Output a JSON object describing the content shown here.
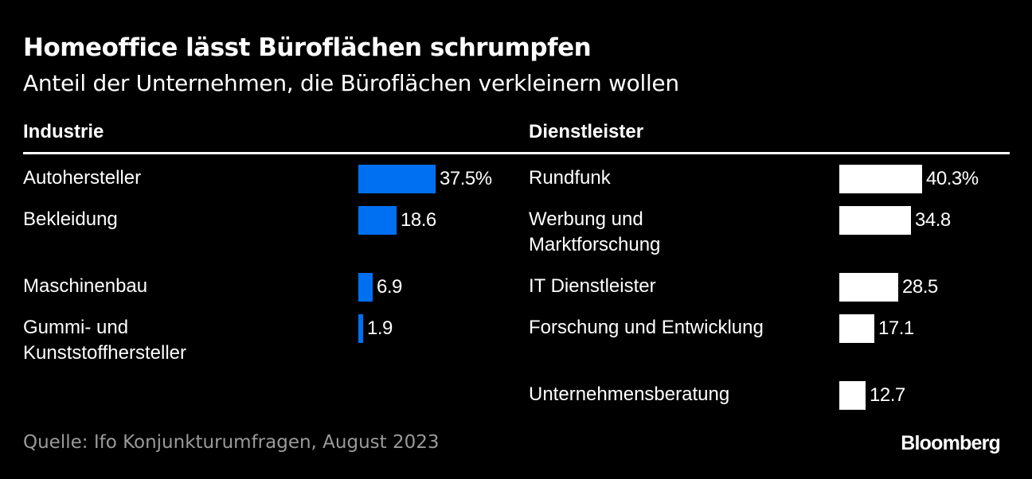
{
  "header": {
    "title": "Homeoffice lässt Büroflächen schrumpfen",
    "subtitle": "Anteil der Unternehmen, die Büroflächen verkleinern wollen"
  },
  "footer": {
    "source": "Quelle: Ifo Konjunkturumfragen, August 2023",
    "brand": "Bloomberg"
  },
  "chart_data": [
    {
      "type": "bar",
      "orientation": "horizontal",
      "group": "Industrie",
      "color": "#0070f3",
      "xlim": [
        0,
        40.3
      ],
      "categories": [
        "Autohersteller",
        "Bekleidung",
        "Maschinenbau",
        "Gummi- und\nKunststoffhersteller"
      ],
      "values": [
        37.5,
        18.6,
        6.9,
        1.9
      ],
      "value_labels": [
        "37.5%",
        "18.6",
        "6.9",
        "1.9"
      ]
    },
    {
      "type": "bar",
      "orientation": "horizontal",
      "group": "Dienstleister",
      "color": "#ffffff",
      "xlim": [
        0,
        40.3
      ],
      "categories": [
        "Rundfunk",
        "Werbung und\nMarktforschung",
        "IT Dienstleister",
        "Forschung und Entwicklung",
        "Unternehmensberatung"
      ],
      "values": [
        40.3,
        34.8,
        28.5,
        17.1,
        12.7
      ],
      "value_labels": [
        "40.3%",
        "34.8",
        "28.5",
        "17.1",
        "12.7"
      ]
    }
  ]
}
